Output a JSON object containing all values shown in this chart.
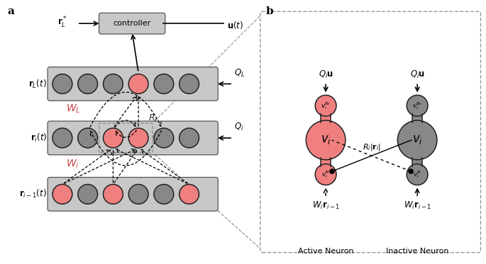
{
  "pink_color": "#F08080",
  "gray_color": "#888888",
  "box_bg": "#C8C8C8",
  "controller_bg": "#C8C8C8",
  "black": "#000000",
  "dash_gray": "#999999",
  "pink_text": "#CC4444",
  "panel_a_label": "a",
  "panel_b_label": "b",
  "layer_labels": [
    "$\\mathbf{r}_L(t)$",
    "$\\mathbf{r}_i(t)$",
    "$\\mathbf{r}_{i-1}(t)$"
  ],
  "u_label": "$\\mathbf{u}(t)$",
  "r_star_label": "$\\mathbf{r}_L^*$",
  "controller_label": "controller",
  "active_label": "Active Neuron",
  "inactive_label": "Inactive Neuron",
  "Qiu_label": "$Q_i\\mathbf{u}$",
  "WL_label": "$W_L$",
  "Wi_label": "$W_i$",
  "Ri_label": "$R_i$",
  "QL_label": "$Q_L$",
  "Qi_label": "$Q_i$",
  "ri_coupling_label": "$R_i|\\mathbf{r}_i|$",
  "Wi_ri_label": "$W_i\\mathbf{r}_{i-1}$",
  "rL_colors": [
    "gray",
    "gray",
    "gray",
    "pink",
    "gray",
    "gray"
  ],
  "ri_colors": [
    "gray",
    "gray",
    "pink",
    "pink",
    "gray",
    "gray"
  ],
  "rim1_colors": [
    "pink",
    "gray",
    "pink",
    "gray",
    "gray",
    "pink"
  ],
  "n_neurons": 6,
  "figw": 6.85,
  "figh": 3.73
}
